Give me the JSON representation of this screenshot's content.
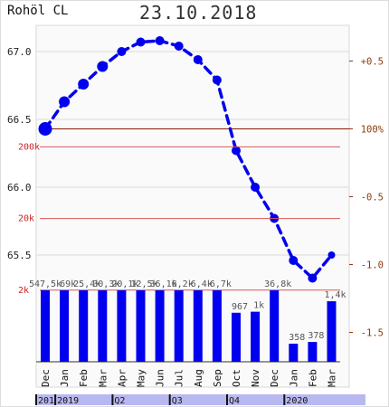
{
  "symbol": "Rohöl CL",
  "date": "23.10.2018",
  "colors": {
    "background": "#fafafa",
    "curve": "#0000ee",
    "bars": "#0000ee",
    "ref_line": "#8b1a00",
    "right_axis_text": "#8b3a0f",
    "left_axis_text": "#222222",
    "volume_label_text": "#555555",
    "volume_grid_text": "#cc2222",
    "timeline_band": "#b8b8f0"
  },
  "chart_data": [
    {
      "type": "line",
      "series": [
        {
          "x": [
            "Dec",
            "Jan",
            "Feb",
            "Mar",
            "Apr",
            "May",
            "Jun",
            "Jul",
            "Aug",
            "Sep",
            "Oct",
            "Nov",
            "Dec",
            "Jan",
            "Feb",
            "Mar"
          ],
          "values": [
            66.43,
            66.63,
            66.76,
            66.89,
            67.0,
            67.07,
            67.08,
            67.04,
            66.94,
            66.79,
            66.27,
            66.0,
            65.77,
            65.46,
            65.33,
            65.5
          ]
        }
      ],
      "left_axis": {
        "ticks": [
          "67.0",
          "66.5",
          "66.0",
          "65.5"
        ],
        "tick_values": [
          67.0,
          66.5,
          66.0,
          65.5
        ]
      },
      "right_axis": {
        "ticks": [
          "+0.5",
          "100%",
          "-0.5",
          "-1.0",
          "-1.5"
        ],
        "tick_values": [
          0.5,
          0,
          -0.5,
          -1.0,
          -1.5
        ],
        "reference_label": "100%"
      },
      "ylim": [
        65.38,
        67.35
      ],
      "grid": true
    },
    {
      "type": "bar",
      "categories": [
        "Dec",
        "Jan",
        "Feb",
        "Mar",
        "Apr",
        "May",
        "Jun",
        "Jul",
        "Aug",
        "Sep",
        "Oct",
        "Nov",
        "Dec",
        "Jan",
        "Feb",
        "Mar"
      ],
      "values": [
        547500,
        69000,
        25400,
        30300,
        20100,
        12500,
        36100,
        6200,
        6400,
        6700,
        967,
        1000,
        36800,
        358,
        378,
        1400
      ],
      "data_labels": [
        "547,5k",
        "69k",
        "25,4k",
        "30,3k",
        "20,1k",
        "12,5k",
        "36,1k",
        "6,2k",
        "6,4k",
        "6,7k",
        "967",
        "1k",
        "36,8k",
        "358",
        "378",
        "1,4k"
      ],
      "y_ticks": [
        "200k",
        "20k",
        "2k"
      ],
      "y_tick_values": [
        200000,
        20000,
        2000
      ],
      "log_scale": true
    }
  ],
  "timeline": {
    "labels": [
      {
        "text": "201",
        "month_index": 0
      },
      {
        "text": "2019",
        "month_index": 1
      },
      {
        "text": "Q2",
        "month_index": 4
      },
      {
        "text": "Q3",
        "month_index": 7
      },
      {
        "text": "Q4",
        "month_index": 10
      },
      {
        "text": "2020",
        "month_index": 13
      }
    ]
  }
}
